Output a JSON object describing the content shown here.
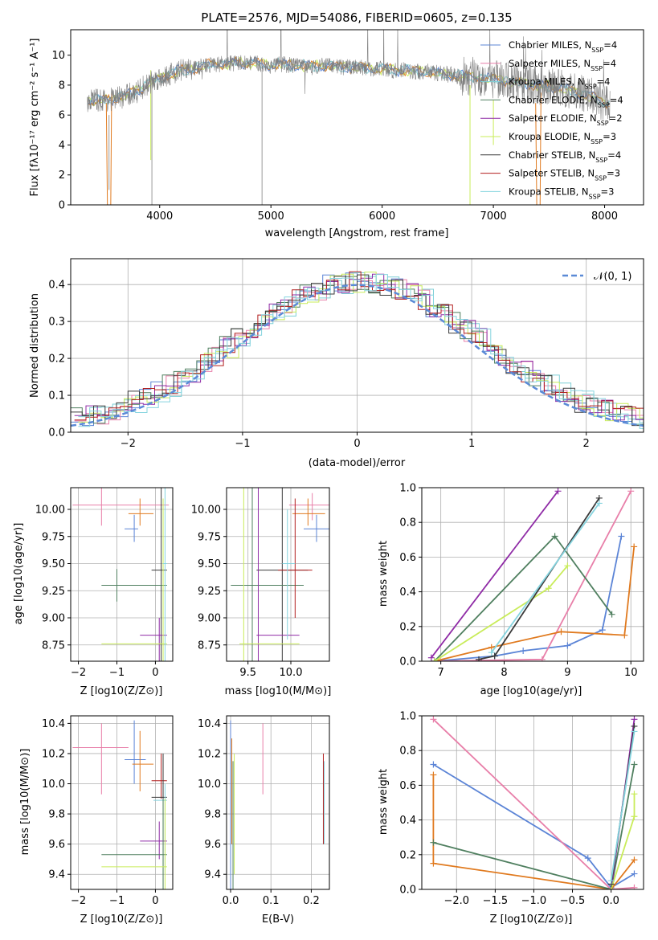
{
  "title": "PLATE=2576, MJD=54086, FIBERID=0605, z=0.135",
  "colors": {
    "Chabrier MILES": "#5b84d6",
    "Salpeter MILES": "#e87fa9",
    "Kroupa MILES": "#7ecfd6",
    "Chabrier ELODIE": "#4f7f5f",
    "Salpeter ELODIE": "#8f2ba6",
    "Kroupa ELODIE": "#c9ec5a",
    "Chabrier STELIB": "#3a3a3a",
    "Salpeter STELIB": "#b21e1e",
    "Kroupa STELIB": "#86d4df",
    "orange": "#e07a1f",
    "gray": "#7f7f7f",
    "normal": "#5b8ad6"
  },
  "spectrum": {
    "ylabel": "Flux [fλ10⁻¹⁷ erg cm⁻² s⁻¹ A⁻¹]",
    "xlabel": "wavelength [Angstrom, rest frame]",
    "xticks": [
      "4000",
      "5000",
      "6000",
      "7000",
      "8000"
    ],
    "yticks": [
      "0",
      "2",
      "4",
      "6",
      "8",
      "10"
    ],
    "legend": [
      "Chabrier MILES, NSSP=4",
      "Salpeter MILES, NSSP=4",
      "Kroupa MILES, NSSP=4",
      "Chabrier ELODIE, NSSP=4",
      "Salpeter ELODIE, NSSP=2",
      "Kroupa ELODIE, NSSP=3",
      "Chabrier STELIB, NSSP=4",
      "Salpeter STELIB, NSSP=3",
      "Kroupa STELIB, NSSP=3"
    ]
  },
  "histogram": {
    "ylabel": "Normed distribution",
    "xlabel": "(data-model)/error",
    "legend": "𝒩(0, 1)",
    "xticks": [
      "−2",
      "−1",
      "0",
      "1",
      "2"
    ],
    "yticks": [
      "0.0",
      "0.1",
      "0.2",
      "0.3",
      "0.4"
    ]
  },
  "p3": {
    "ylabel": "age  [log10(age/yr)]",
    "xlabel": "Z [log10(Z/Z⊙)]",
    "xticks": [
      "−2",
      "−1",
      "0"
    ],
    "yticks": [
      "8.75",
      "9.00",
      "9.25",
      "9.50",
      "9.75",
      "10.00"
    ]
  },
  "p4": {
    "xlabel": "mass [log10(M/M⊙)]",
    "xticks": [
      "9.5",
      "10.0"
    ],
    "yticks": [
      "8.75",
      "9.00",
      "9.25",
      "9.50",
      "9.75",
      "10.00"
    ]
  },
  "p5": {
    "ylabel": "mass weight",
    "xlabel": "age  [log10(age/yr)]",
    "xticks": [
      "7",
      "8",
      "9",
      "10"
    ],
    "yticks": [
      "0.0",
      "0.2",
      "0.4",
      "0.6",
      "0.8",
      "1.0"
    ]
  },
  "p6": {
    "ylabel": "mass [log10(M/M⊙)]",
    "xlabel": "Z [log10(Z/Z⊙)]",
    "xticks": [
      "−2",
      "−1",
      "0"
    ],
    "yticks": [
      "9.4",
      "9.6",
      "9.8",
      "10.0",
      "10.2",
      "10.4"
    ]
  },
  "p7": {
    "xlabel": "E(B-V)",
    "xticks": [
      "0.0",
      "0.1",
      "0.2"
    ],
    "yticks": [
      "9.4",
      "9.6",
      "9.8",
      "10.0",
      "10.2",
      "10.4"
    ]
  },
  "p8": {
    "ylabel": "mass weight",
    "xlabel": "Z [log10(Z/Z⊙)]",
    "xticks": [
      "−2.0",
      "−1.5",
      "−1.0",
      "−0.5",
      "0.0"
    ],
    "yticks": [
      "0.0",
      "0.2",
      "0.4",
      "0.6",
      "0.8",
      "1.0"
    ]
  },
  "chart_data": [
    {
      "type": "line",
      "title": "PLATE=2576, MJD=54086, FIBERID=0605, z=0.135",
      "xlabel": "wavelength [Angstrom, rest frame]",
      "ylabel": "Flux [fλ10⁻¹⁷ erg cm⁻² s⁻¹ A⁻¹]",
      "xlim": [
        3200,
        8350
      ],
      "ylim": [
        0,
        11.7
      ],
      "x": [
        3400,
        3500,
        3600,
        3700,
        3800,
        3900,
        4000,
        4100,
        4200,
        4300,
        4400,
        4500,
        4600,
        4700,
        4800,
        4900,
        5000,
        5100,
        5200,
        5300,
        5400,
        5500,
        5600,
        5700,
        5800,
        5900,
        6000,
        6100,
        6200,
        6300,
        6400,
        6500,
        6600,
        6700,
        6800,
        6900,
        7000,
        7100,
        7200,
        7300,
        7400,
        7500,
        7600,
        7700,
        7800,
        7900,
        8000
      ],
      "series": [
        {
          "name": "data",
          "values": [
            7.0,
            7.0,
            7.1,
            7.3,
            7.6,
            8.1,
            8.5,
            8.8,
            9.0,
            9.1,
            9.3,
            9.4,
            9.4,
            9.5,
            9.5,
            9.4,
            9.3,
            9.4,
            9.3,
            9.3,
            9.3,
            9.3,
            9.2,
            9.2,
            9.2,
            9.1,
            9.1,
            9.0,
            9.0,
            8.9,
            8.9,
            8.8,
            8.7,
            8.6,
            8.6,
            8.5,
            8.4,
            8.3,
            8.2,
            8.1,
            8.0,
            7.9,
            7.8,
            7.6,
            7.4,
            7.2,
            6.8
          ]
        }
      ]
    },
    {
      "type": "bar",
      "title": "",
      "xlabel": "(data-model)/error",
      "ylabel": "Normed distribution",
      "xlim": [
        -2.5,
        2.5
      ],
      "ylim": [
        0,
        0.47
      ],
      "legend": "𝒩(0, 1)"
    },
    {
      "type": "scatter",
      "xlabel": "Z [log10(Z/Z⊙)]",
      "ylabel": "age  [log10(age/yr)]",
      "xlim": [
        -2.2,
        0.45
      ],
      "ylim": [
        8.6,
        10.2
      ]
    },
    {
      "type": "scatter",
      "xlabel": "mass [log10(M/M⊙)]",
      "ylabel": "",
      "xlim": [
        9.25,
        10.45
      ],
      "ylim": [
        8.6,
        10.2
      ]
    },
    {
      "type": "line",
      "xlabel": "age  [log10(age/yr)]",
      "ylabel": "mass weight",
      "xlim": [
        6.7,
        10.2
      ],
      "ylim": [
        0,
        1
      ],
      "series": [
        {
          "name": "Chabrier MILES",
          "x": [
            6.9,
            7.85,
            8.3,
            9.0,
            9.55,
            9.85
          ],
          "values": [
            0.0,
            0.03,
            0.06,
            0.09,
            0.18,
            0.72
          ]
        },
        {
          "name": "Salpeter MILES",
          "x": [
            6.9,
            8.6,
            10.0
          ],
          "values": [
            0.0,
            0.01,
            0.98
          ]
        },
        {
          "name": "orange",
          "x": [
            6.9,
            7.8,
            8.9,
            9.9,
            10.05
          ],
          "values": [
            0.0,
            0.08,
            0.17,
            0.15,
            0.66
          ]
        },
        {
          "name": "Chabrier ELODIE",
          "x": [
            6.9,
            8.8,
            9.7
          ],
          "values": [
            0.0,
            0.72,
            0.27
          ]
        },
        {
          "name": "Salpeter ELODIE",
          "x": [
            6.85,
            8.85
          ],
          "values": [
            0.02,
            0.98
          ]
        },
        {
          "name": "Kroupa ELODIE",
          "x": [
            6.9,
            8.7,
            9.0
          ],
          "values": [
            0.0,
            0.42,
            0.55
          ]
        },
        {
          "name": "Chabrier STELIB",
          "x": [
            7.6,
            7.85,
            9.5
          ],
          "values": [
            0.01,
            0.03,
            0.94
          ]
        },
        {
          "name": "Kroupa STELIB",
          "x": [
            7.8,
            9.5
          ],
          "values": [
            0.05,
            0.91
          ]
        }
      ]
    },
    {
      "type": "scatter",
      "xlabel": "Z [log10(Z/Z⊙)]",
      "ylabel": "mass [log10(M/M⊙)]",
      "xlim": [
        -2.2,
        0.45
      ],
      "ylim": [
        9.3,
        10.45
      ]
    },
    {
      "type": "scatter",
      "xlabel": "E(B-V)",
      "ylabel": "",
      "xlim": [
        -0.01,
        0.245
      ],
      "ylim": [
        9.3,
        10.45
      ]
    },
    {
      "type": "line",
      "xlabel": "Z [log10(Z/Z⊙)]",
      "ylabel": "mass weight",
      "xlim": [
        -2.45,
        0.42
      ],
      "ylim": [
        0,
        1
      ],
      "series": [
        {
          "name": "Chabrier MILES",
          "x": [
            -2.3,
            -0.3,
            0.0,
            0.3
          ],
          "values": [
            0.72,
            0.18,
            0.01,
            0.09
          ]
        },
        {
          "name": "Salpeter MILES",
          "x": [
            -2.3,
            0.0,
            0.3
          ],
          "values": [
            0.98,
            0.0,
            0.01
          ]
        },
        {
          "name": "orange",
          "x": [
            -2.3,
            -2.3,
            0.0,
            0.3
          ],
          "values": [
            0.66,
            0.15,
            0.0,
            0.17
          ]
        },
        {
          "name": "Chabrier ELODIE",
          "x": [
            -2.3,
            0.0,
            0.3
          ],
          "values": [
            0.27,
            0.0,
            0.72
          ]
        },
        {
          "name": "Salpeter ELODIE",
          "x": [
            0.0,
            0.3
          ],
          "values": [
            0.0,
            0.98
          ]
        },
        {
          "name": "Kroupa ELODIE",
          "x": [
            0.0,
            0.3,
            0.3
          ],
          "values": [
            0.0,
            0.42,
            0.55
          ]
        },
        {
          "name": "Chabrier STELIB",
          "x": [
            0.0,
            0.3
          ],
          "values": [
            0.03,
            0.94
          ]
        },
        {
          "name": "Kroupa STELIB",
          "x": [
            0.0,
            0.3
          ],
          "values": [
            0.05,
            0.91
          ]
        }
      ]
    }
  ]
}
